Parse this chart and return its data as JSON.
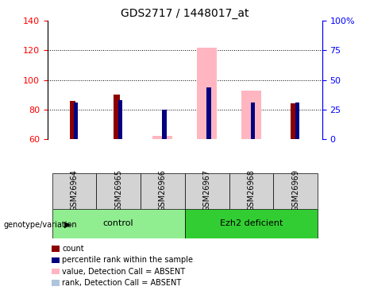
{
  "title": "GDS2717 / 1448017_at",
  "samples": [
    "GSM26964",
    "GSM26965",
    "GSM26966",
    "GSM26967",
    "GSM26968",
    "GSM26969"
  ],
  "ylim_left": [
    60,
    140
  ],
  "ylim_right": [
    0,
    100
  ],
  "yticks_left": [
    60,
    80,
    100,
    120,
    140
  ],
  "yticks_right": [
    0,
    25,
    50,
    75,
    100
  ],
  "count_values": [
    86,
    90,
    null,
    null,
    null,
    84
  ],
  "rank_values_pct": [
    31,
    33,
    25,
    44,
    31,
    31
  ],
  "absent_value_values": [
    null,
    null,
    62,
    122,
    93,
    null
  ],
  "absent_rank_pct": [
    null,
    null,
    25,
    44,
    31,
    null
  ],
  "count_color": "#8B0000",
  "rank_color": "#000080",
  "absent_value_color": "#FFB6C1",
  "absent_rank_color": "#B0C4DE",
  "sample_bg": "#D3D3D3",
  "group_bg_control": "#90EE90",
  "group_bg_ezh2": "#32CD32",
  "bar_width": 0.18
}
